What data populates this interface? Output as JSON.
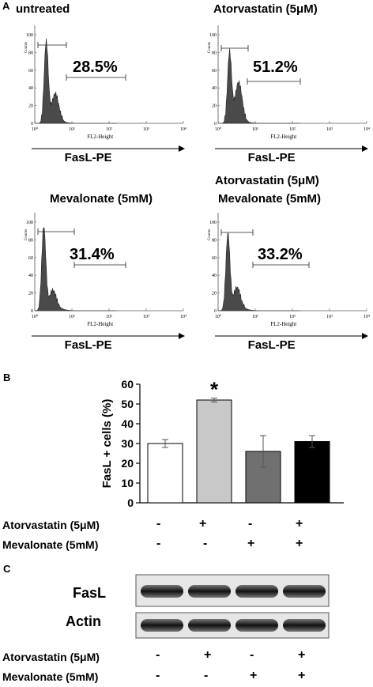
{
  "panel_letters": [
    "A",
    "B",
    "C"
  ],
  "chart_data": [
    {
      "type": "area",
      "title": "untreated",
      "xlabel": "FL2-Height",
      "ylabel": "Counts",
      "annotation": "28.5%",
      "axis_label": "FasL-PE",
      "x_ticks": [
        "10⁰",
        "10¹",
        "10²",
        "10³",
        "10⁴"
      ],
      "y_ticks": [
        "0",
        "20",
        "40",
        "60",
        "80",
        "100"
      ]
    },
    {
      "type": "area",
      "title": "Atorvastatin (5μM)",
      "xlabel": "FL2-Height",
      "ylabel": "Counts",
      "annotation": "51.2%",
      "axis_label": "FasL-PE",
      "x_ticks": [
        "10⁰",
        "10¹",
        "10²",
        "10³",
        "10⁴"
      ],
      "y_ticks": [
        "0",
        "20",
        "40",
        "60",
        "80",
        "100"
      ]
    },
    {
      "type": "area",
      "title": "Mevalonate (5mM)",
      "xlabel": "FL2-Height",
      "ylabel": "Counts",
      "annotation": "31.4%",
      "axis_label": "FasL-PE",
      "x_ticks": [
        "10⁰",
        "10¹",
        "10²",
        "10³",
        "10⁴"
      ],
      "y_ticks": [
        "0",
        "20",
        "40",
        "60",
        "80",
        "100"
      ]
    },
    {
      "type": "area",
      "title": "Atorvastatin (5μM)\nMevalonate (5mM)",
      "title_lines": [
        "Atorvastatin (5μM)",
        "Mevalonate (5mM)"
      ],
      "xlabel": "FL2-Height",
      "ylabel": "Counts",
      "annotation": "33.2%",
      "axis_label": "FasL-PE",
      "x_ticks": [
        "10⁰",
        "10¹",
        "10²",
        "10³",
        "10⁴"
      ],
      "y_ticks": [
        "0",
        "20",
        "40",
        "60",
        "80",
        "100"
      ]
    },
    {
      "type": "bar",
      "ylabel": "FasL + cells (%)",
      "ylim": [
        0,
        60
      ],
      "y_ticks": [
        "0",
        "10",
        "20",
        "30",
        "40",
        "50",
        "60"
      ],
      "values": [
        30,
        52,
        26,
        31
      ],
      "errors": [
        2,
        1,
        8,
        3
      ],
      "colors": [
        "#ffffff",
        "#c8c8c8",
        "#707070",
        "#000000"
      ],
      "significance": "*",
      "significance_index": 1,
      "conditions": [
        {
          "label": "Atorvastatin (5μM)",
          "signs": [
            "-",
            "+",
            "-",
            "+"
          ]
        },
        {
          "label": "Mevalonate (5mM)",
          "signs": [
            "-",
            "-",
            "+",
            "+"
          ]
        }
      ]
    }
  ],
  "blot": {
    "rows": [
      "FasL",
      "Actin"
    ],
    "conditions": [
      {
        "label": "Atorvastatin (5μM)",
        "signs": [
          "-",
          "+",
          "-",
          "+"
        ]
      },
      {
        "label": "Mevalonate (5mM)",
        "signs": [
          "-",
          "-",
          "+",
          "+"
        ]
      }
    ]
  }
}
